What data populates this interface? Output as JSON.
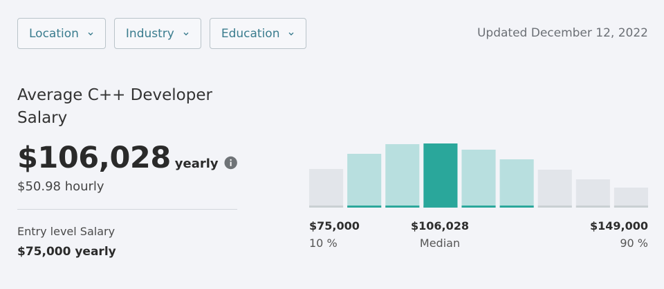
{
  "filters": [
    {
      "label": "Location"
    },
    {
      "label": "Industry"
    },
    {
      "label": "Education"
    }
  ],
  "updated": "Updated December 12, 2022",
  "summary": {
    "title": "Average C++ Developer Salary",
    "salary": "$106,028",
    "period": "yearly",
    "hourly": "$50.98 hourly",
    "entry_label": "Entry level Salary",
    "entry_value": "$75,000 yearly"
  },
  "colors": {
    "accent": "#2aa79b",
    "light_teal": "#b8dfdf",
    "grey_bar": "#e2e5ea",
    "grey_base": "#c9d0d3"
  },
  "chart_data": {
    "type": "bar",
    "values": [
      56,
      78,
      92,
      93,
      84,
      70,
      55,
      41,
      29
    ],
    "highlight_index": 3,
    "in_range": [
      false,
      true,
      true,
      true,
      true,
      true,
      false,
      false,
      false
    ],
    "markers": [
      {
        "value": "$75,000",
        "sub": "10 %",
        "align": "left"
      },
      {
        "value": "$106,028",
        "sub": "Median",
        "align": "center"
      },
      {
        "value": "$149,000",
        "sub": "90 %",
        "align": "right"
      }
    ]
  }
}
